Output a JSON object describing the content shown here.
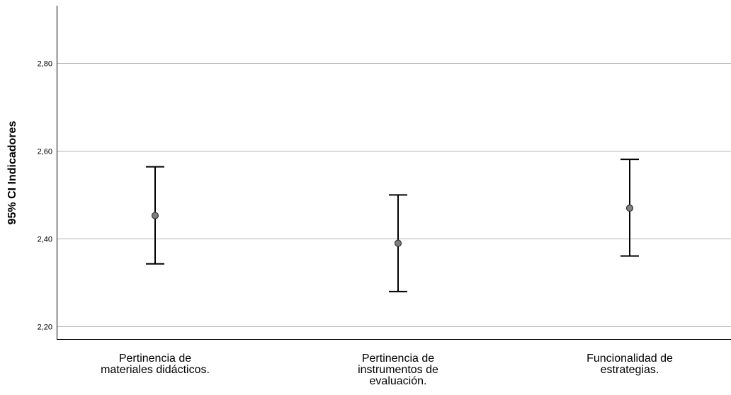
{
  "chart_data": {
    "type": "errorbar",
    "ylabel": "95% CI Indicadores",
    "ylim": [
      2.17,
      2.93
    ],
    "yticks": [
      {
        "value": 2.2,
        "label": "2,20"
      },
      {
        "value": 2.4,
        "label": "2,40"
      },
      {
        "value": 2.6,
        "label": "2,60"
      },
      {
        "value": 2.8,
        "label": "2,80"
      }
    ],
    "grid": true,
    "categories": [
      {
        "lines": [
          "Pertinencia de",
          "materiales didácticos."
        ],
        "mean": 2.452,
        "lower": 2.342,
        "upper": 2.563
      },
      {
        "lines": [
          "Pertinencia de",
          "instrumentos de",
          "evaluación."
        ],
        "mean": 2.389,
        "lower": 2.279,
        "upper": 2.499
      },
      {
        "lines": [
          "Funcionalidad de",
          "estrategias."
        ],
        "mean": 2.469,
        "lower": 2.36,
        "upper": 2.58
      }
    ]
  }
}
